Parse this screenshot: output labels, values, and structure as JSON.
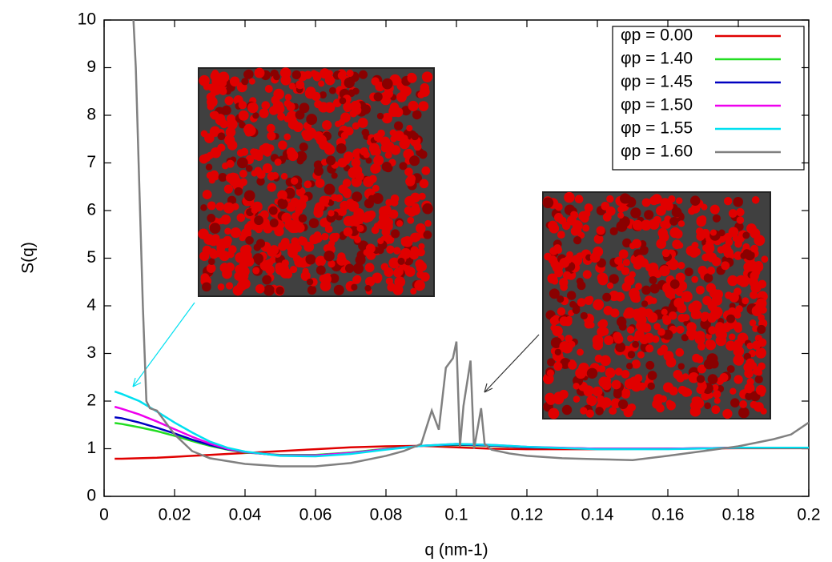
{
  "chart_data": {
    "type": "line",
    "xlabel": "q (nm-1)",
    "ylabel": "S(q)",
    "xlim": [
      0,
      0.2
    ],
    "ylim": [
      0,
      10
    ],
    "xticks": [
      0,
      0.02,
      0.04,
      0.06,
      0.08,
      0.1,
      0.12,
      0.14,
      0.16,
      0.18,
      0.2
    ],
    "yticks": [
      0,
      1,
      2,
      3,
      4,
      5,
      6,
      7,
      8,
      9,
      10
    ],
    "legend": "upper right",
    "x": [
      0.003,
      0.005,
      0.01,
      0.015,
      0.02,
      0.025,
      0.03,
      0.035,
      0.04,
      0.05,
      0.06,
      0.07,
      0.08,
      0.09,
      0.1,
      0.11,
      0.12,
      0.14,
      0.16,
      0.18,
      0.2
    ],
    "series": [
      {
        "name": "φp = 0.00",
        "color": "#e00000",
        "values": [
          0.79,
          0.79,
          0.8,
          0.81,
          0.83,
          0.85,
          0.87,
          0.89,
          0.91,
          0.95,
          0.99,
          1.03,
          1.05,
          1.06,
          1.03,
          1.0,
          0.99,
          0.99,
          1.0,
          1.01,
          1.01
        ]
      },
      {
        "name": "φp = 1.40",
        "color": "#22dd22",
        "values": [
          1.54,
          1.52,
          1.45,
          1.37,
          1.27,
          1.16,
          1.06,
          0.98,
          0.92,
          0.87,
          0.87,
          0.92,
          1.0,
          1.06,
          1.08,
          1.06,
          1.03,
          1.0,
          1.0,
          1.02,
          1.02
        ]
      },
      {
        "name": "φp = 1.45",
        "color": "#0000c0",
        "values": [
          1.66,
          1.64,
          1.55,
          1.44,
          1.32,
          1.19,
          1.08,
          0.99,
          0.93,
          0.86,
          0.86,
          0.91,
          0.99,
          1.06,
          1.09,
          1.07,
          1.03,
          1.0,
          1.0,
          1.02,
          1.02
        ]
      },
      {
        "name": "φp = 1.50",
        "color": "#ee00ee",
        "values": [
          1.88,
          1.84,
          1.72,
          1.57,
          1.41,
          1.25,
          1.11,
          1.0,
          0.93,
          0.86,
          0.86,
          0.91,
          0.99,
          1.06,
          1.1,
          1.08,
          1.04,
          1.0,
          1.0,
          1.02,
          1.02
        ]
      },
      {
        "name": "φp = 1.55",
        "color": "#00e0f0",
        "values": [
          2.2,
          2.15,
          2.0,
          1.78,
          1.55,
          1.34,
          1.15,
          1.02,
          0.94,
          0.85,
          0.84,
          0.89,
          0.98,
          1.06,
          1.1,
          1.08,
          1.04,
          0.99,
          0.99,
          1.02,
          1.02
        ]
      },
      {
        "name": "φp = 1.60",
        "color": "#808080",
        "x": [
          0.008,
          0.009,
          0.011,
          0.012,
          0.013,
          0.015,
          0.02,
          0.025,
          0.03,
          0.04,
          0.05,
          0.06,
          0.07,
          0.08,
          0.085,
          0.09,
          0.093,
          0.095,
          0.097,
          0.099,
          0.1,
          0.101,
          0.102,
          0.104,
          0.105,
          0.107,
          0.108,
          0.11,
          0.115,
          0.12,
          0.13,
          0.14,
          0.15,
          0.16,
          0.17,
          0.18,
          0.19,
          0.195,
          0.2
        ],
        "values": [
          10.5,
          9.0,
          4.0,
          2.0,
          1.85,
          1.8,
          1.3,
          0.95,
          0.8,
          0.68,
          0.63,
          0.63,
          0.7,
          0.85,
          0.95,
          1.1,
          1.8,
          1.4,
          2.7,
          2.9,
          3.25,
          1.05,
          1.9,
          2.85,
          1.0,
          1.85,
          1.1,
          0.98,
          0.9,
          0.85,
          0.8,
          0.78,
          0.76,
          0.85,
          0.95,
          1.05,
          1.2,
          1.3,
          1.55
        ]
      }
    ]
  }
}
